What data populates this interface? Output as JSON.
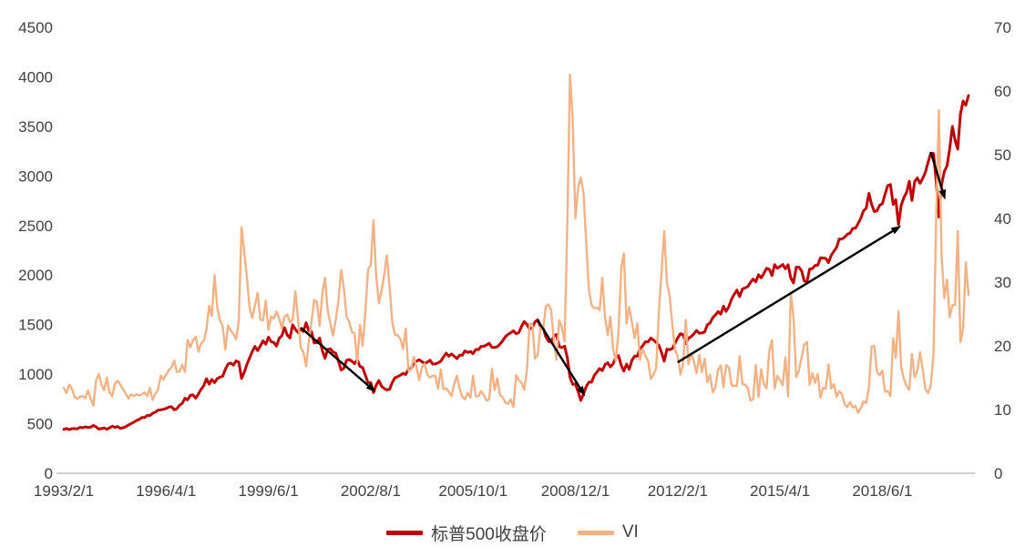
{
  "chart_data": {
    "type": "line",
    "x_start": "1993/2/1",
    "x_unit": "month",
    "x_ticks": [
      {
        "label": "1993/2/1",
        "index": 0
      },
      {
        "label": "1996/4/1",
        "index": 38
      },
      {
        "label": "1999/6/1",
        "index": 76
      },
      {
        "label": "2002/8/1",
        "index": 114
      },
      {
        "label": "2005/10/1",
        "index": 152
      },
      {
        "label": "2008/12/1",
        "index": 190
      },
      {
        "label": "2012/2/1",
        "index": 228
      },
      {
        "label": "2015/4/1",
        "index": 266
      },
      {
        "label": "2018/6/1",
        "index": 304
      }
    ],
    "left_axis": {
      "min": 0,
      "max": 4500,
      "step": 500,
      "ticks": [
        0,
        500,
        1000,
        1500,
        2000,
        2500,
        3000,
        3500,
        4000,
        4500
      ]
    },
    "right_axis": {
      "min": 0,
      "max": 70,
      "step": 10,
      "ticks": [
        0,
        10,
        20,
        30,
        40,
        50,
        60,
        70
      ]
    },
    "grid": false,
    "legend_position": "bottom",
    "legend": [
      {
        "label": "标普500收盘价",
        "color": "#C00000"
      },
      {
        "label": "VI",
        "color": "#F4B183"
      }
    ],
    "series": [
      {
        "name": "标普500收盘价",
        "axis": "left",
        "color": "#C00000",
        "width": 3,
        "values": [
          443,
          452,
          440,
          450,
          451,
          448,
          464,
          459,
          468,
          462,
          466,
          482,
          467,
          446,
          451,
          457,
          444,
          458,
          475,
          463,
          472,
          454,
          459,
          470,
          487,
          501,
          515,
          533,
          545,
          562,
          562,
          584,
          582,
          605,
          616,
          636,
          640,
          646,
          654,
          669,
          671,
          640,
          652,
          687,
          705,
          757,
          741,
          786,
          791,
          757,
          801,
          848,
          885,
          954,
          899,
          947,
          915,
          955,
          970,
          980,
          1049,
          1102,
          1112,
          1091,
          1134,
          1121,
          957,
          1017,
          1099,
          1164,
          1229,
          1280,
          1238,
          1286,
          1335,
          1302,
          1373,
          1329,
          1320,
          1283,
          1363,
          1389,
          1469,
          1394,
          1366,
          1499,
          1452,
          1421,
          1455,
          1431,
          1518,
          1437,
          1429,
          1315,
          1320,
          1366,
          1240,
          1160,
          1249,
          1256,
          1224,
          1211,
          1134,
          1041,
          1060,
          1139,
          1148,
          1130,
          1107,
          1147,
          1077,
          1067,
          990,
          912,
          916,
          815,
          886,
          936,
          880,
          856,
          841,
          848,
          917,
          964,
          975,
          990,
          1008,
          996,
          1051,
          1058,
          1112,
          1131,
          1145,
          1126,
          1107,
          1121,
          1141,
          1102,
          1104,
          1115,
          1130,
          1174,
          1212,
          1181,
          1204,
          1181,
          1157,
          1192,
          1191,
          1234,
          1220,
          1229,
          1207,
          1249,
          1248,
          1280,
          1281,
          1295,
          1311,
          1270,
          1270,
          1277,
          1304,
          1336,
          1378,
          1401,
          1418,
          1438,
          1407,
          1421,
          1482,
          1531,
          1503,
          1455,
          1474,
          1527,
          1549,
          1481,
          1468,
          1379,
          1331,
          1323,
          1386,
          1400,
          1280,
          1267,
          1283,
          1166,
          969,
          896,
          903,
          826,
          735,
          798,
          873,
          919,
          919,
          987,
          1021,
          1057,
          1036,
          1096,
          1115,
          1074,
          1104,
          1169,
          1187,
          1089,
          1031,
          1102,
          1049,
          1141,
          1183,
          1181,
          1258,
          1286,
          1327,
          1326,
          1364,
          1345,
          1321,
          1292,
          1219,
          1131,
          1253,
          1247,
          1258,
          1312,
          1366,
          1408,
          1398,
          1310,
          1362,
          1379,
          1407,
          1441,
          1412,
          1416,
          1426,
          1498,
          1515,
          1569,
          1598,
          1631,
          1606,
          1686,
          1633,
          1682,
          1757,
          1806,
          1848,
          1783,
          1859,
          1872,
          1884,
          1924,
          1960,
          1931,
          2003,
          1972,
          2018,
          2068,
          2059,
          1995,
          2105,
          2068,
          2086,
          2107,
          2063,
          2104,
          1972,
          1920,
          2079,
          2080,
          2044,
          1940,
          1932,
          2060,
          2065,
          2097,
          2099,
          2174,
          2171,
          2168,
          2126,
          2199,
          2239,
          2279,
          2364,
          2363,
          2384,
          2412,
          2423,
          2470,
          2472,
          2519,
          2575,
          2648,
          2674,
          2824,
          2714,
          2641,
          2648,
          2705,
          2718,
          2816,
          2902,
          2914,
          2712,
          2760,
          2507,
          2704,
          2784,
          2834,
          2946,
          2752,
          2942,
          2980,
          2926,
          2977,
          3038,
          3141,
          3231,
          3226,
          2954,
          2585,
          2912,
          3044,
          3100,
          3271,
          3500,
          3363,
          3270,
          3622,
          3756,
          3714,
          3811
        ]
      },
      {
        "name": "VI",
        "axis": "right",
        "color": "#F4B183",
        "width": 2.4,
        "values": [
          13.4,
          12.6,
          13.9,
          13.3,
          12.0,
          11.7,
          12.0,
          12.1,
          11.8,
          13.0,
          11.7,
          10.6,
          14.6,
          15.6,
          13.9,
          13.0,
          15.0,
          12.7,
          12.1,
          14.1,
          14.5,
          13.9,
          13.2,
          12.5,
          11.7,
          12.4,
          12.1,
          12.4,
          12.2,
          12.4,
          12.7,
          12.1,
          13.4,
          11.5,
          12.5,
          13.1,
          15.3,
          14.7,
          15.5,
          16.2,
          16.6,
          17.7,
          15.9,
          16.0,
          17.0,
          15.9,
          20.9,
          19.8,
          20.9,
          21.4,
          19.1,
          20.4,
          20.8,
          22.6,
          26.3,
          24.7,
          31.1,
          26.0,
          24.0,
          23.1,
          19.4,
          23.2,
          22.4,
          21.9,
          21.0,
          24.0,
          38.6,
          34.9,
          30.7,
          26.0,
          24.4,
          26.4,
          28.3,
          24.1,
          24.0,
          27.1,
          22.5,
          24.6,
          24.3,
          25.4,
          24.3,
          22.7,
          24.6,
          24.9,
          23.7,
          24.1,
          28.6,
          24.2,
          19.7,
          19.0,
          16.8,
          20.6,
          23.8,
          27.2,
          26.9,
          23.1,
          28.1,
          30.7,
          25.6,
          23.5,
          21.6,
          24.1,
          27.0,
          31.9,
          29.1,
          24.6,
          23.8,
          22.2,
          21.9,
          17.4,
          23.3,
          20.0,
          25.4,
          32.0,
          32.6,
          39.7,
          31.1,
          26.7,
          28.6,
          31.2,
          34.2,
          29.2,
          23.7,
          21.7,
          21.7,
          21.1,
          19.5,
          22.7,
          16.1,
          16.3,
          18.3,
          16.6,
          14.6,
          16.7,
          17.2,
          15.5,
          15.0,
          15.3,
          15.3,
          13.3,
          16.3,
          13.2,
          13.3,
          12.8,
          12.1,
          14.0,
          15.3,
          13.3,
          12.0,
          11.6,
          12.6,
          11.9,
          15.3,
          12.1,
          12.1,
          12.9,
          12.3,
          11.4,
          11.6,
          16.4,
          13.1,
          14.9,
          12.3,
          11.9,
          11.1,
          10.9,
          11.6,
          10.4,
          15.4,
          14.6,
          14.2,
          13.1,
          16.2,
          23.5,
          23.4,
          18.0,
          18.5,
          22.9,
          22.5,
          26.2,
          26.5,
          25.6,
          20.8,
          17.8,
          24.0,
          22.9,
          20.7,
          39.4,
          62.6,
          55.3,
          40.0,
          44.8,
          46.4,
          44.1,
          36.5,
          28.9,
          26.4,
          25.9,
          26.0,
          25.6,
          30.7,
          24.5,
          21.7,
          24.6,
          19.5,
          17.6,
          22.1,
          32.1,
          34.5,
          23.5,
          26.1,
          23.7,
          21.2,
          23.5,
          17.8,
          19.5,
          18.4,
          17.7,
          14.8,
          15.5,
          16.5,
          25.3,
          31.6,
          38.0,
          29.9,
          27.8,
          23.4,
          19.4,
          18.4,
          15.5,
          17.2,
          24.1,
          17.1,
          18.9,
          17.5,
          15.7,
          18.6,
          15.9,
          18.0,
          14.3,
          15.5,
          12.7,
          13.5,
          16.3,
          16.9,
          13.5,
          17.0,
          16.6,
          13.8,
          13.7,
          13.7,
          18.4,
          14.0,
          13.9,
          13.4,
          11.4,
          11.6,
          17.0,
          12.0,
          16.3,
          14.0,
          13.3,
          19.2,
          20.9,
          13.3,
          15.3,
          14.6,
          13.8,
          18.2,
          12.1,
          28.4,
          24.5,
          15.1,
          16.1,
          18.2,
          20.2,
          20.6,
          13.9,
          15.7,
          14.2,
          15.6,
          11.9,
          13.4,
          13.3,
          17.1,
          13.3,
          14.0,
          12.0,
          12.9,
          12.4,
          10.8,
          10.4,
          11.2,
          10.3,
          10.6,
          9.5,
          10.2,
          11.3,
          11.0,
          13.5,
          19.9,
          20.0,
          15.9,
          15.4,
          16.1,
          12.8,
          12.9,
          12.1,
          21.2,
          18.1,
          25.4,
          16.6,
          14.8,
          13.7,
          13.1,
          18.7,
          15.1,
          16.1,
          19.0,
          16.2,
          13.2,
          12.6,
          13.8,
          18.8,
          40.1,
          57.0,
          34.2,
          27.5,
          30.4,
          24.5,
          26.4,
          26.4,
          38.0,
          20.6,
          22.8,
          33.1,
          28.0
        ]
      }
    ],
    "annotations": {
      "arrows": [
        {
          "from_index": 88,
          "from_value": 1470,
          "to_index": 115,
          "to_value": 840
        },
        {
          "from_index": 176,
          "from_value": 1545,
          "to_index": 193,
          "to_value": 805
        },
        {
          "from_index": 228,
          "from_value": 1120,
          "to_index": 310,
          "to_value": 2480
        },
        {
          "from_index": 322,
          "from_value": 3240,
          "to_index": 327,
          "to_value": 2790
        }
      ],
      "arrow_color": "#000000"
    },
    "axis_line_color": "#bfbfbf",
    "text_color": "#404040"
  }
}
